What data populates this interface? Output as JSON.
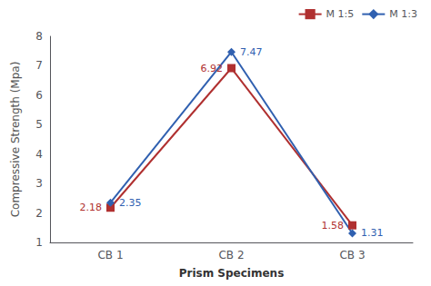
{
  "chart_data": {
    "type": "line",
    "categories": [
      "CB 1",
      "CB 2",
      "CB 3"
    ],
    "series": [
      {
        "name": "M 1:5",
        "color": "#b03030",
        "marker": "square",
        "values": [
          2.18,
          6.92,
          1.58
        ]
      },
      {
        "name": "M 1:3",
        "color": "#3060b0",
        "marker": "diamond",
        "values": [
          2.35,
          7.47,
          1.31
        ]
      }
    ],
    "xlabel": "Prism Specimens",
    "ylabel": "Compressive Strength (Mpa)",
    "ylim": [
      1,
      8
    ],
    "yticks": [
      1,
      2,
      3,
      4,
      5,
      6,
      7,
      8
    ],
    "grid": false,
    "legend": "upper right",
    "data_labels": true
  }
}
